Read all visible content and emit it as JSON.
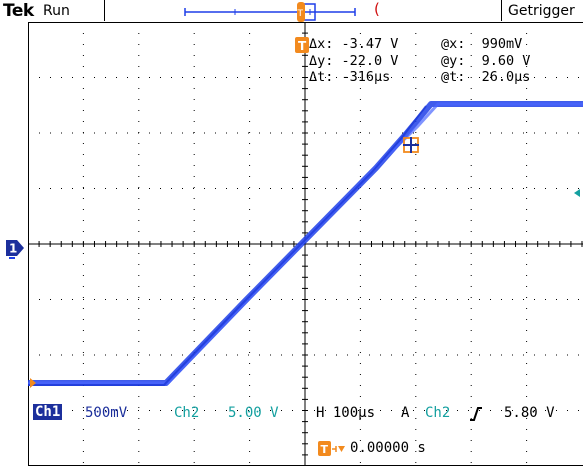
{
  "header": {
    "brand": "Tek",
    "run_state": "Run",
    "trigger_state": "Getrigger"
  },
  "cursor_readout": {
    "dx_label": "Δx:",
    "dx_value": "-3.47 V",
    "ax_label": "@x:",
    "ax_value": "990mV",
    "dy_label": "Δy:",
    "dy_value": "-22.0 V",
    "ay_label": "@y:",
    "ay_value": "9.60 V",
    "dt_label": "Δt:",
    "dt_value": "-316µs",
    "at_label": "@t:",
    "at_value": "26.0µs"
  },
  "channel_bar": {
    "ch1_label": "Ch1",
    "ch1_scale": "500mV",
    "ch2_label": "Ch2",
    "ch2_scale": "5.00 V",
    "horizontal": "H 100µs",
    "trigger_mode": "A",
    "trigger_source": "Ch2",
    "trigger_level": "5.80 V"
  },
  "trigger_position": "0.00000 s",
  "channel_marker": "1",
  "colors": {
    "trace": "#1f3fe8",
    "ch2": "#14a0a0",
    "accent_orange": "#f28a1e",
    "marker_blue": "#1c2f9c",
    "grid": "#000000"
  }
}
